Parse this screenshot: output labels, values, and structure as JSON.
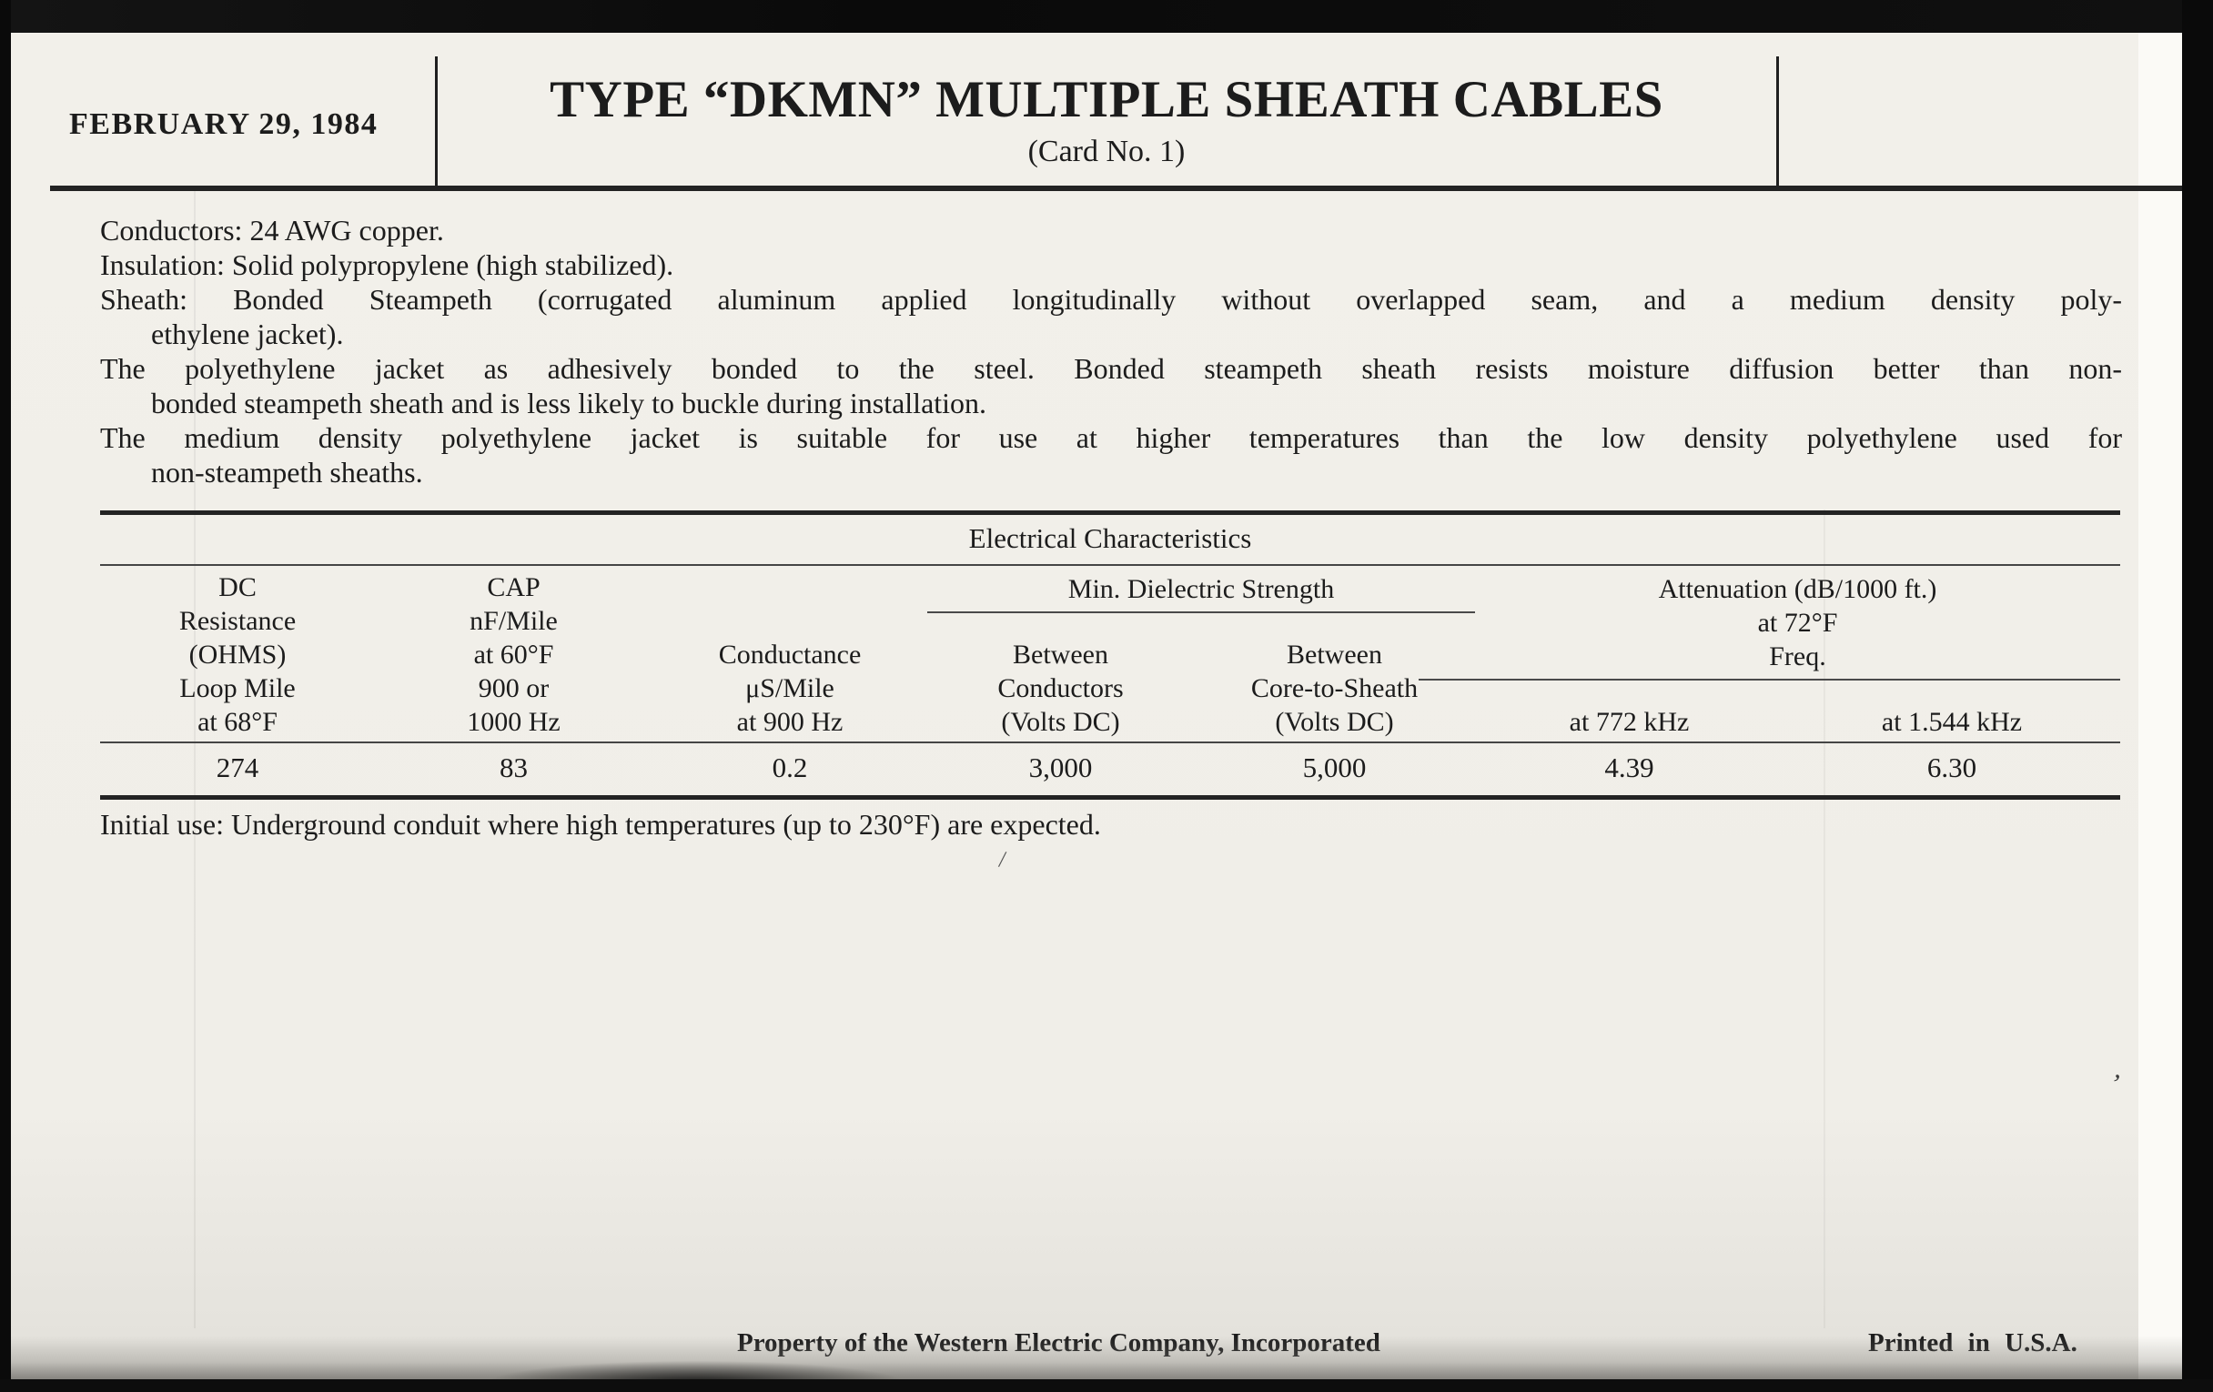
{
  "header": {
    "date": "FEBRUARY 29, 1984",
    "title": "TYPE “DKMN” MULTIPLE SHEATH CABLES",
    "subtitle": "(Card No. 1)"
  },
  "body": {
    "line_conductors": "Conductors: 24 AWG copper.",
    "line_insulation": "Insulation: Solid polypropylene (high stabilized).",
    "line_sheath_1": "Sheath: Bonded Steampeth (corrugated aluminum applied longitudinally without overlapped seam, and a medium density poly-",
    "line_sheath_2": "ethylene jacket).",
    "line_jacket_1": "The polyethylene jacket as adhesively bonded to the steel. Bonded steampeth sheath resists moisture diffusion better than non-",
    "line_jacket_2": "bonded steampeth sheath and is less likely to buckle during installation.",
    "line_medium_1": "The medium density polyethylene jacket is suitable for use at higher temperatures than the low density polyethylene used for",
    "line_medium_2": "non-steampeth sheaths."
  },
  "table": {
    "title": "Electrical Characteristics",
    "headers": {
      "dc_resistance": "DC\nResistance\n(OHMS)\nLoop Mile\nat 68°F",
      "cap": "CAP\nnF/Mile\nat 60°F\n900 or\n1000 Hz",
      "conductance": "Conductance\nμS/Mile\nat 900 Hz",
      "dielectric_group": "Min. Dielectric Strength",
      "between_conductors": "Between\nConductors\n(Volts DC)",
      "between_core_to_sheath": "Between\nCore-to-Sheath\n(Volts DC)",
      "attenuation_group": "Attenuation (dB/1000 ft.)\nat 72°F\nFreq.",
      "at_772_khz": "at 772 kHz",
      "at_1544_khz": "at 1.544 kHz"
    },
    "row": {
      "dc_resistance": "274",
      "cap": "83",
      "conductance": "0.2",
      "between_conductors": "3,000",
      "between_core_to_sheath": "5,000",
      "at_772_khz": "4.39",
      "at_1544_khz": "6.30"
    }
  },
  "notes": {
    "initial_use": "Initial use: Underground conduit where high temperatures (up to 230°F) are expected."
  },
  "footer": {
    "property": "Property of the Western Electric Company, Incorporated",
    "printed": "Printed in U.S.A."
  }
}
